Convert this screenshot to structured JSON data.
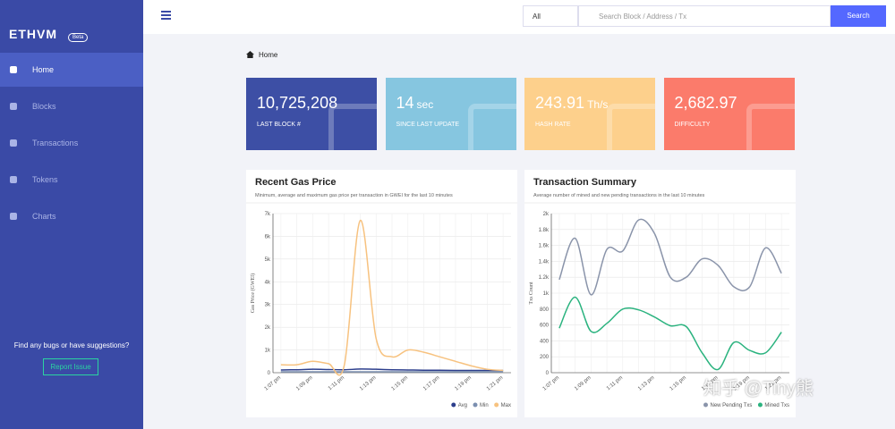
{
  "sidebar": {
    "logo": "ETHVM",
    "badge": "Beta",
    "menu": [
      "Home",
      "Blocks",
      "Transactions",
      "Tokens",
      "Charts"
    ],
    "active": 0,
    "feedback": "Find any bugs or have suggestions?",
    "button": "Report Issue"
  },
  "header": {
    "filter": "All",
    "placeholder": "Search Block / Address / Tx",
    "button": "Search"
  },
  "breadcrumb": "Home",
  "stats": [
    {
      "value": "10,725,208",
      "label": "LAST BLOCK #",
      "color": "#3d4fa5"
    },
    {
      "value": "14",
      "unit": "sec",
      "label": "SINCE LAST UPDATE",
      "color": "#86c6e0"
    },
    {
      "value": "243.91",
      "unit": "Th/s",
      "label": "HASH RATE",
      "color": "#fdd08c"
    },
    {
      "value": "2,682.97",
      "label": "DIFFICULTY",
      "color": "#fb7b6b"
    }
  ],
  "charts": [
    {
      "type": "line",
      "title": "Recent Gas Price",
      "subtitle": "Minimum, average and maximum gas price per transaction in GWEI for the last 10 minutes",
      "y_label": "Gas Price (GWEI)",
      "categories": [
        "1:07 pm",
        null,
        "1:09 pm",
        null,
        "1:11 pm",
        null,
        "1:13 pm",
        null,
        "1:15 pm",
        null,
        "1:17 pm",
        null,
        "1:19 pm",
        null,
        "1:21 pm"
      ],
      "series": [
        {
          "name": "Avg",
          "color": "#2c3e8c",
          "values": [
            120,
            130,
            150,
            140,
            130,
            160,
            150,
            130,
            120,
            110,
            110,
            100,
            100,
            100,
            100
          ]
        },
        {
          "name": "Min",
          "color": "#7b8fb0",
          "values": [
            40,
            40,
            40,
            40,
            40,
            40,
            40,
            40,
            40,
            40,
            40,
            40,
            40,
            40,
            40
          ]
        },
        {
          "name": "Max",
          "color": "#f7c27f",
          "values": [
            350,
            350,
            500,
            400,
            350,
            6700,
            1500,
            700,
            1000,
            900,
            700,
            500,
            300,
            150,
            100
          ]
        }
      ],
      "ylim": [
        0,
        7000
      ],
      "yticks": [
        0,
        {
          "value": 1000,
          "label": "1k"
        },
        {
          "value": 2000,
          "label": "2k"
        },
        {
          "value": 3000,
          "label": "3k"
        },
        {
          "value": 4000,
          "label": "4k"
        },
        {
          "value": 5000,
          "label": "5k"
        },
        {
          "value": 6000,
          "label": "6k"
        },
        {
          "value": 7000,
          "label": "7k"
        }
      ],
      "grid": true
    },
    {
      "type": "line",
      "title": "Transaction Summary",
      "subtitle": "Average number of mined and new pending transactions in the last 10 minutes",
      "y_label": "Txs Count",
      "categories": [
        "1:07 pm",
        null,
        "1:09 pm",
        null,
        "1:11 pm",
        null,
        "1:13 pm",
        null,
        "1:15 pm",
        null,
        "1:17 pm",
        null,
        "1:19 pm",
        null,
        "1:21 pm"
      ],
      "series": [
        {
          "name": "New Pending Txs",
          "color": "#8a94aa",
          "values": [
            1170,
            1690,
            980,
            1550,
            1530,
            1920,
            1750,
            1200,
            1200,
            1430,
            1350,
            1080,
            1080,
            1570,
            1250
          ]
        },
        {
          "name": "Mined Txs",
          "color": "#2bb37f",
          "values": [
            560,
            950,
            520,
            620,
            800,
            790,
            700,
            590,
            580,
            250,
            40,
            380,
            280,
            250,
            510
          ]
        }
      ],
      "ylim": [
        0,
        2000
      ],
      "yticks": [
        0,
        200,
        400,
        600,
        800,
        {
          "value": 1000,
          "label": "1k"
        },
        {
          "value": 1200,
          "label": "1.2k"
        },
        {
          "value": 1400,
          "label": "1.4k"
        },
        {
          "value": 1600,
          "label": "1.6k"
        },
        {
          "value": 1800,
          "label": "1.8k"
        },
        {
          "value": 2000,
          "label": "2k"
        }
      ],
      "grid": true
    }
  ],
  "watermark": "知乎 @Tiny熊"
}
